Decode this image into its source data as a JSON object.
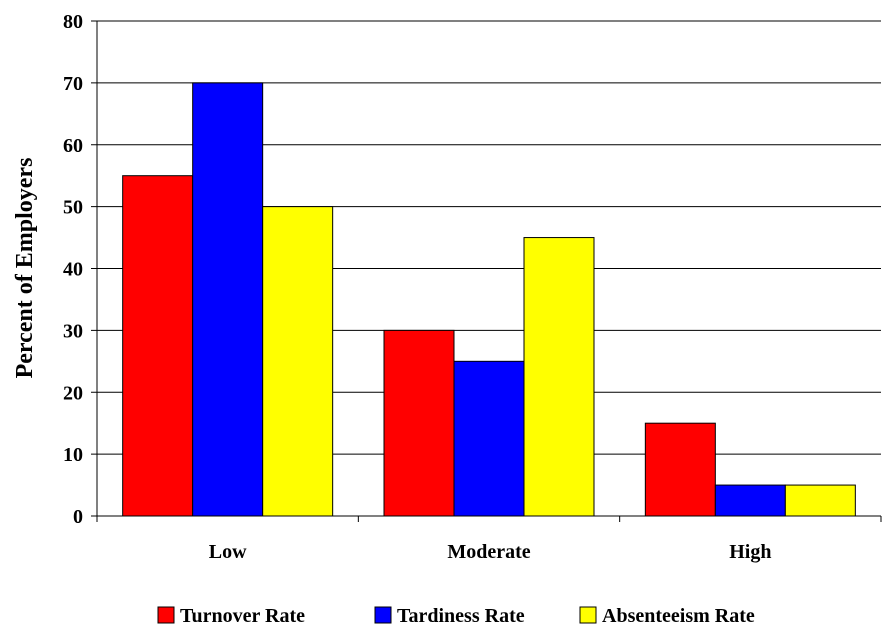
{
  "chart_data": {
    "type": "bar",
    "title": "",
    "xlabel": "",
    "ylabel": "Percent of Employers",
    "ylim": [
      0,
      80
    ],
    "yticks": [
      0,
      10,
      20,
      30,
      40,
      50,
      60,
      70,
      80
    ],
    "grid": true,
    "legend_position": "bottom",
    "categories": [
      "Low",
      "Moderate",
      "High"
    ],
    "series": [
      {
        "name": "Turnover Rate",
        "color": "#ff0000",
        "values": [
          55,
          30,
          15
        ]
      },
      {
        "name": "Tardiness Rate",
        "color": "#0000ff",
        "values": [
          70,
          25,
          5
        ]
      },
      {
        "name": "Absenteeism Rate",
        "color": "#ffff00",
        "values": [
          50,
          45,
          5
        ]
      }
    ]
  }
}
